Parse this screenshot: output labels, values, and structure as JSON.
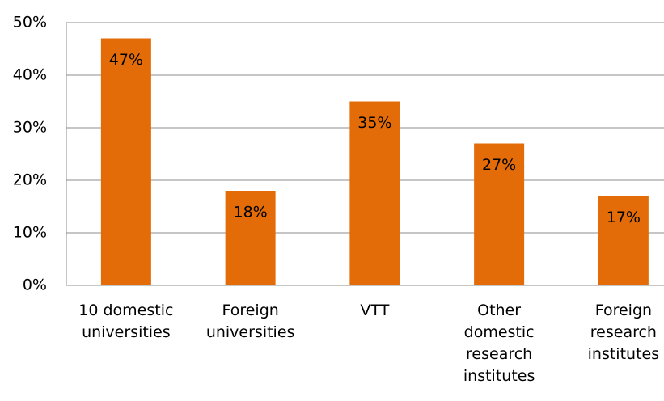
{
  "chart_data": {
    "type": "bar",
    "categories": [
      "10 domestic\nuniversities",
      "Foreign\nuniversities",
      "VTT",
      "Other\ndomestic\nresearch\ninstitutes",
      "Foreign\nresearch\ninstitutes"
    ],
    "values": [
      47,
      18,
      35,
      27,
      17
    ],
    "value_labels": [
      "47%",
      "18%",
      "35%",
      "27%",
      "17%"
    ],
    "color": "#e36c09",
    "ylim": [
      0,
      50
    ],
    "yticks": [
      {
        "value": 0,
        "label": "0%"
      },
      {
        "value": 10,
        "label": "10%"
      },
      {
        "value": 20,
        "label": "20%"
      },
      {
        "value": 30,
        "label": "30%"
      },
      {
        "value": 40,
        "label": "40%"
      },
      {
        "value": 50,
        "label": "50%"
      }
    ],
    "grid": true
  }
}
